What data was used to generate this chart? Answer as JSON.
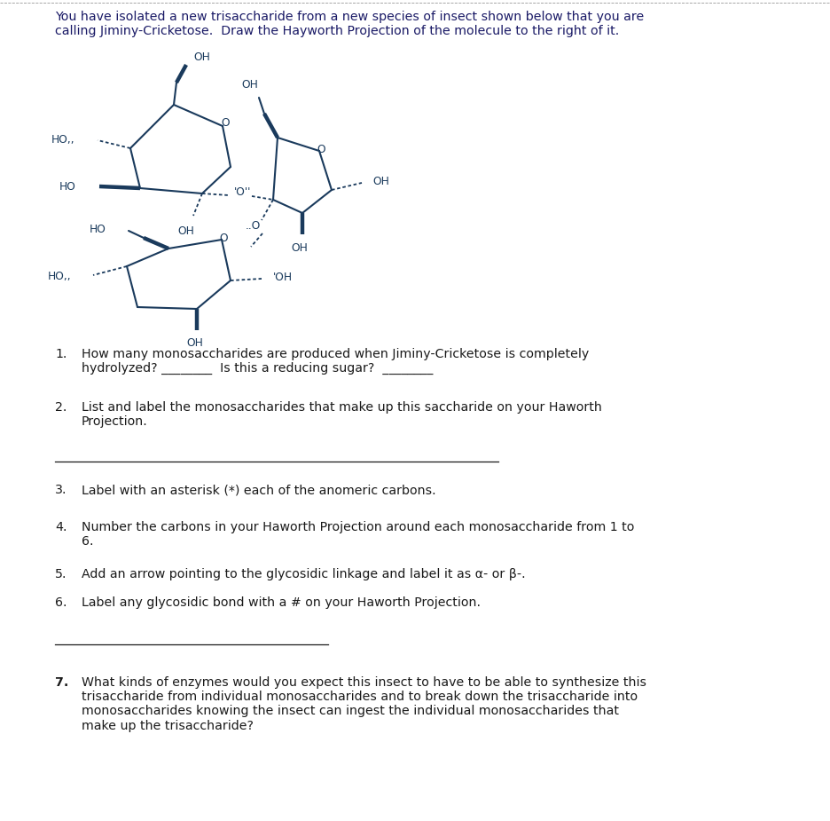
{
  "title": "You have isolated a new trisaccharide from a new species of insect shown below that you are\ncalling Jiminy-Cricketose.  Draw the Hayworth Projection of the molecule to the right of it.",
  "bg_color": "#ffffff",
  "text_color": "#1a1a1a",
  "chem_color": "#1a3a5c",
  "q1_text": "How many monosaccharides are produced when Jiminy-Cricketose is completely\nhydrolyzed? ________  Is this a reducing sugar?  ________",
  "q2_text": "List and label the monosaccharides that make up this saccharide on your Haworth\nProjection.",
  "q3_text": "Label with an asterisk (*) each of the anomeric carbons.",
  "q4_text": "Number the carbons in your Haworth Projection around each monosaccharide from 1 to\n6.",
  "q5_text": "Add an arrow pointing to the glycosidic linkage and label it as α- or β-.",
  "q6_text": "Label any glycosidic bond with a # on your Haworth Projection.",
  "q7_text": "What kinds of enzymes would you expect this insect to have to be able to synthesize this\ntrisaccharide from individual monosaccharides and to break down the trisaccharide into\nmonosaccharides knowing the insect can ingest the individual monosaccharides that\nmake up the trisaccharide?"
}
